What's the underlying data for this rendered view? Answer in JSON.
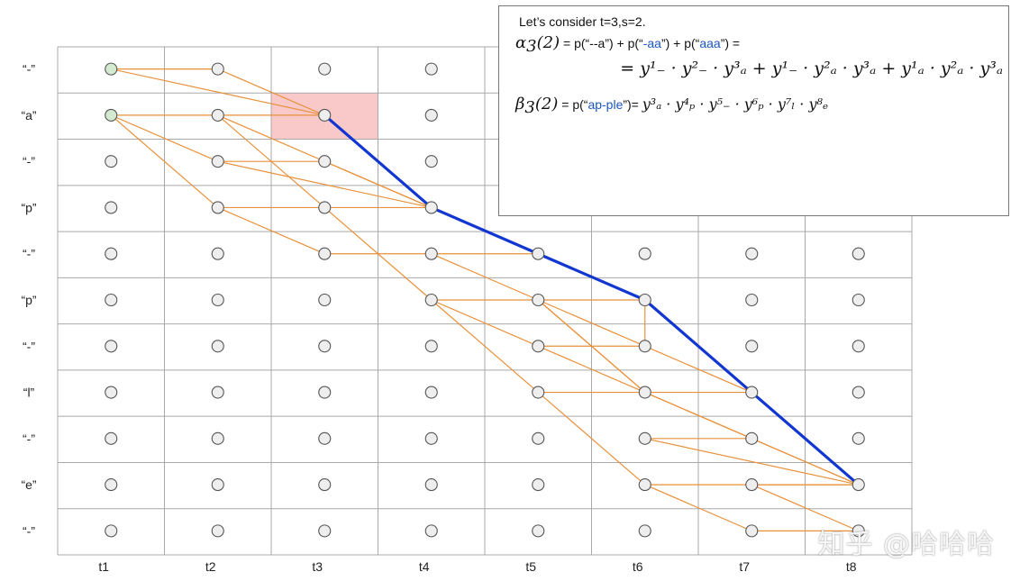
{
  "row_labels": [
    "“-”",
    "“a”",
    "“-”",
    "“p”",
    "“-”",
    "“p”",
    "“-”",
    "“l”",
    "“-”",
    "“e”",
    "“-”"
  ],
  "col_labels": [
    "t1",
    "t2",
    "t3",
    "t4",
    "t5",
    "t6",
    "t7",
    "t8"
  ],
  "colors": {
    "grid": "#a9a9a9",
    "edge": "#e8913a",
    "path": "#1237d1",
    "node_fill": "#eeeeee",
    "node_start_fill": "#d3ead0",
    "node_stroke": "#555555",
    "highlight": "#f9c9c9"
  },
  "highlight_cell": {
    "row": 1,
    "col": 2
  },
  "start_nodes": [
    [
      0,
      0
    ],
    [
      1,
      0
    ]
  ],
  "edges": [
    [
      [
        0,
        0
      ],
      [
        0,
        1
      ]
    ],
    [
      [
        0,
        0
      ],
      [
        1,
        2
      ]
    ],
    [
      [
        0,
        1
      ],
      [
        1,
        2
      ]
    ],
    [
      [
        1,
        0
      ],
      [
        1,
        1
      ]
    ],
    [
      [
        1,
        1
      ],
      [
        1,
        2
      ]
    ],
    [
      [
        1,
        0
      ],
      [
        2,
        1
      ]
    ],
    [
      [
        1,
        0
      ],
      [
        3,
        1
      ]
    ],
    [
      [
        1,
        1
      ],
      [
        3,
        3
      ]
    ],
    [
      [
        1,
        1
      ],
      [
        3,
        2
      ]
    ],
    [
      [
        2,
        1
      ],
      [
        2,
        2
      ]
    ],
    [
      [
        2,
        1
      ],
      [
        3,
        3
      ]
    ],
    [
      [
        2,
        2
      ],
      [
        3,
        3
      ]
    ],
    [
      [
        3,
        1
      ],
      [
        3,
        3
      ]
    ],
    [
      [
        3,
        1
      ],
      [
        4,
        2
      ]
    ],
    [
      [
        3,
        2
      ],
      [
        5,
        3
      ]
    ],
    [
      [
        4,
        2
      ],
      [
        4,
        4
      ]
    ],
    [
      [
        4,
        3
      ],
      [
        5,
        4
      ]
    ],
    [
      [
        5,
        3
      ],
      [
        5,
        5
      ]
    ],
    [
      [
        5,
        3
      ],
      [
        6,
        4
      ]
    ],
    [
      [
        5,
        3
      ],
      [
        7,
        4
      ]
    ],
    [
      [
        5,
        4
      ],
      [
        7,
        5
      ]
    ],
    [
      [
        5,
        5
      ],
      [
        7,
        6
      ]
    ],
    [
      [
        5,
        5
      ],
      [
        6,
        5
      ]
    ],
    [
      [
        5,
        4
      ],
      [
        6,
        5
      ]
    ],
    [
      [
        5,
        4
      ],
      [
        7,
        5
      ]
    ],
    [
      [
        6,
        4
      ],
      [
        6,
        5
      ]
    ],
    [
      [
        6,
        4
      ],
      [
        7,
        5
      ]
    ],
    [
      [
        6,
        5
      ],
      [
        7,
        6
      ]
    ],
    [
      [
        7,
        4
      ],
      [
        7,
        6
      ]
    ],
    [
      [
        7,
        4
      ],
      [
        9,
        5
      ]
    ],
    [
      [
        7,
        5
      ],
      [
        9,
        7
      ]
    ],
    [
      [
        7,
        5
      ],
      [
        8,
        6
      ]
    ],
    [
      [
        8,
        5
      ],
      [
        8,
        6
      ]
    ],
    [
      [
        8,
        6
      ],
      [
        9,
        7
      ]
    ],
    [
      [
        8,
        5
      ],
      [
        9,
        7
      ]
    ],
    [
      [
        9,
        5
      ],
      [
        9,
        7
      ]
    ],
    [
      [
        9,
        5
      ],
      [
        10,
        6
      ]
    ],
    [
      [
        9,
        6
      ],
      [
        10,
        7
      ]
    ],
    [
      [
        9,
        6
      ],
      [
        9,
        7
      ]
    ],
    [
      [
        10,
        6
      ],
      [
        10,
        7
      ]
    ],
    [
      [
        7,
        6
      ],
      [
        9,
        7
      ]
    ]
  ],
  "path": [
    [
      1,
      2
    ],
    [
      3,
      3
    ],
    [
      4,
      4
    ],
    [
      5,
      5
    ],
    [
      7,
      6
    ],
    [
      9,
      7
    ]
  ],
  "formula_box": {
    "title": "Let’s consider t=3,s=2.",
    "alpha_symbol": "α",
    "alpha_sub": "3",
    "alpha_arg": "(2)",
    "alpha_eq_prefix": "= p(“",
    "alpha_term1": "--a",
    "alpha_mid1": "”) + p(“",
    "alpha_term2": "-aa",
    "alpha_mid2": "”) + p(“",
    "alpha_term3": "aaa",
    "alpha_end": "”) =",
    "alpha_expansion": "= y¹₋ · y²₋ · y³ₐ + y¹₋ · y²ₐ · y³ₐ + y¹ₐ · y²ₐ · y³ₐ",
    "beta_symbol": "β",
    "beta_sub": "3",
    "beta_arg": "(2)",
    "beta_eq_prefix": "= p(“",
    "beta_term": "ap-ple",
    "beta_eq_end": "”)=",
    "beta_expansion": "y³ₐ · y⁴ₚ · y⁵₋ · y⁶ₚ · y⁷ₗ · y⁸ₑ"
  },
  "watermark": "知乎 @哈哈哈"
}
